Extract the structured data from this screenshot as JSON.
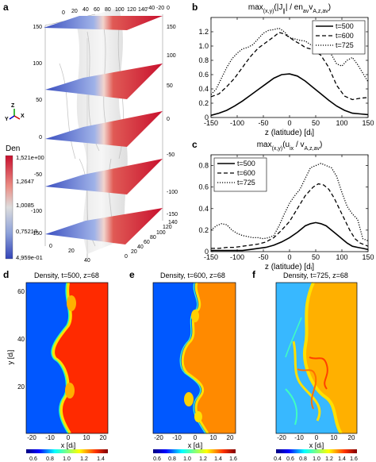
{
  "panels": {
    "a": {
      "label": "a",
      "colorbar": {
        "title": "Den",
        "ticks": [
          "1,521e+00",
          "1,2647",
          "1,0085",
          "0,75218",
          "4,959e-01"
        ],
        "colors": [
          "#d4203a",
          "#e98c82",
          "#dcdcdc",
          "#8a9fd6",
          "#3b4fc0"
        ]
      },
      "axes_ticks_top": [
        "0",
        "20",
        "40",
        "60",
        "80",
        "100",
        "120",
        "140",
        "-40",
        "-20",
        "0"
      ],
      "axes_ticks_left": [
        "150",
        "100",
        "50",
        "0",
        "-50",
        "-100",
        "-150"
      ],
      "axes_ticks_right": [
        "150",
        "100",
        "50",
        "0",
        "-50",
        "-100",
        "-150"
      ],
      "axes_ticks_bottom_right": [
        "140",
        "120",
        "100",
        "80",
        "60",
        "40",
        "20",
        "0"
      ],
      "axes_ticks_bottom_left": [
        "20",
        "40",
        "0"
      ],
      "triad": {
        "z": "Z",
        "y": "Y",
        "x": "X"
      }
    },
    "d": {
      "label": "d",
      "title": "Density, t=500, z=68",
      "xlabel": "x [dᵢ]",
      "ylabel": "y [dᵢ]",
      "xticks": [
        "-20",
        "-10",
        "0",
        "10",
        "20"
      ],
      "yticks": [
        "20",
        "40",
        "60"
      ],
      "cbar_ticks": [
        "0.6",
        "0.8",
        "1.0",
        "1.2",
        "1.4"
      ]
    },
    "e": {
      "label": "e",
      "title": "Density, t=600, z=68",
      "xlabel": "x [dᵢ]",
      "xticks": [
        "-20",
        "-10",
        "0",
        "10",
        "20"
      ],
      "cbar_ticks": [
        "0.6",
        "0.8",
        "1.0",
        "1.2",
        "1.4",
        "1.6"
      ]
    },
    "f": {
      "label": "f",
      "title": "Density, t=725, z=68",
      "xlabel": "x [dᵢ]",
      "xticks": [
        "-20",
        "-10",
        "0",
        "10",
        "20"
      ],
      "cbar_ticks": [
        "0.4",
        "0.6",
        "0.8",
        "1.0",
        "1.2",
        "1.4",
        "1.6"
      ]
    }
  },
  "chart_data": [
    {
      "panel": "b",
      "type": "line",
      "title_main": "max",
      "title_sub": "(x,y)",
      "title_rest": "(|J",
      "title_par": "∥",
      "title_end": "| / en",
      "title_sub2": "av",
      "title_v": "v",
      "title_sub3": "A,z,av",
      "title_close": ")",
      "xlabel": "z (latitude) [dᵢ]",
      "xlim": [
        -150,
        150
      ],
      "ylim": [
        0,
        1.4
      ],
      "xticks": [
        "-150",
        "-100",
        "-50",
        "0",
        "50",
        "100",
        "150"
      ],
      "yticks": [
        "0",
        "0.2",
        "0.4",
        "0.6",
        "0.8",
        "1.0",
        "1.2"
      ],
      "legend_position": "top-right",
      "series": [
        {
          "name": "t=500",
          "style": "solid",
          "x": [
            -150,
            -135,
            -120,
            -105,
            -90,
            -75,
            -60,
            -45,
            -30,
            -15,
            0,
            15,
            30,
            45,
            60,
            75,
            90,
            105,
            120,
            135,
            150
          ],
          "y": [
            0.03,
            0.06,
            0.1,
            0.16,
            0.23,
            0.31,
            0.39,
            0.47,
            0.55,
            0.6,
            0.61,
            0.58,
            0.51,
            0.42,
            0.33,
            0.24,
            0.16,
            0.1,
            0.06,
            0.05,
            0.04
          ]
        },
        {
          "name": "t=600",
          "style": "dashed",
          "x": [
            -150,
            -135,
            -120,
            -105,
            -90,
            -75,
            -60,
            -45,
            -30,
            -20,
            -10,
            0,
            10,
            20,
            30,
            45,
            60,
            75,
            90,
            105,
            120,
            135,
            150
          ],
          "y": [
            0.29,
            0.33,
            0.43,
            0.55,
            0.7,
            0.85,
            0.97,
            1.05,
            1.13,
            1.19,
            1.17,
            1.12,
            1.07,
            1.03,
            0.98,
            0.95,
            0.87,
            0.7,
            0.45,
            0.3,
            0.25,
            0.27,
            0.28
          ]
        },
        {
          "name": "t=725",
          "style": "dotted",
          "x": [
            -150,
            -140,
            -130,
            -120,
            -110,
            -100,
            -90,
            -80,
            -70,
            -60,
            -50,
            -40,
            -30,
            -20,
            -10,
            0,
            10,
            20,
            30,
            40,
            50,
            60,
            70,
            80,
            90,
            100,
            110,
            120,
            130,
            140,
            150
          ],
          "y": [
            0.32,
            0.4,
            0.55,
            0.7,
            0.82,
            0.9,
            0.96,
            0.98,
            1.02,
            1.1,
            1.18,
            1.22,
            1.23,
            1.25,
            1.2,
            1.12,
            1.1,
            1.08,
            1.07,
            1.02,
            1.0,
            0.95,
            0.97,
            0.88,
            0.75,
            0.72,
            0.8,
            0.84,
            0.74,
            0.62,
            0.5
          ]
        }
      ]
    },
    {
      "panel": "c",
      "type": "line",
      "title_main": "max",
      "title_sub": "(x,y)",
      "title_rest": "(u",
      "title_sub_ix": "ix",
      "title_end": " / v",
      "title_sub3": "A,z,av",
      "title_close": ")",
      "xlabel": "z (latitude) [dᵢ]",
      "xlim": [
        -150,
        150
      ],
      "ylim": [
        0,
        0.9
      ],
      "xticks": [
        "-150",
        "-100",
        "-50",
        "0",
        "50",
        "100",
        "150"
      ],
      "yticks": [
        "0",
        "0.2",
        "0.4",
        "0.6",
        "0.8"
      ],
      "legend_position": "top-left",
      "series": [
        {
          "name": "t=500",
          "style": "solid",
          "x": [
            -150,
            -135,
            -120,
            -105,
            -90,
            -75,
            -60,
            -45,
            -30,
            -15,
            0,
            15,
            30,
            40,
            50,
            60,
            70,
            80,
            90,
            100,
            110,
            120,
            130,
            140,
            150
          ],
          "y": [
            0.01,
            0.01,
            0.01,
            0.01,
            0.01,
            0.02,
            0.03,
            0.04,
            0.06,
            0.09,
            0.13,
            0.18,
            0.24,
            0.26,
            0.27,
            0.26,
            0.24,
            0.2,
            0.16,
            0.12,
            0.08,
            0.05,
            0.04,
            0.03,
            0.02
          ]
        },
        {
          "name": "t=600",
          "style": "dashed",
          "x": [
            -150,
            -135,
            -120,
            -105,
            -90,
            -75,
            -60,
            -45,
            -30,
            -15,
            0,
            15,
            30,
            45,
            55,
            65,
            75,
            85,
            95,
            105,
            115,
            125,
            135,
            150
          ],
          "y": [
            0.03,
            0.03,
            0.04,
            0.04,
            0.05,
            0.06,
            0.07,
            0.09,
            0.13,
            0.2,
            0.28,
            0.4,
            0.52,
            0.6,
            0.63,
            0.62,
            0.58,
            0.5,
            0.4,
            0.3,
            0.2,
            0.12,
            0.08,
            0.05
          ]
        },
        {
          "name": "t=725",
          "style": "dotted",
          "x": [
            -150,
            -140,
            -130,
            -120,
            -110,
            -100,
            -90,
            -80,
            -70,
            -60,
            -50,
            -40,
            -30,
            -20,
            -10,
            0,
            10,
            20,
            30,
            40,
            50,
            60,
            70,
            80,
            90,
            100,
            110,
            120,
            130,
            140,
            150
          ],
          "y": [
            0.2,
            0.24,
            0.26,
            0.25,
            0.2,
            0.17,
            0.15,
            0.14,
            0.13,
            0.13,
            0.12,
            0.13,
            0.15,
            0.24,
            0.35,
            0.45,
            0.52,
            0.58,
            0.68,
            0.78,
            0.8,
            0.82,
            0.8,
            0.78,
            0.7,
            0.55,
            0.42,
            0.35,
            0.3,
            0.12,
            0.1
          ]
        }
      ]
    }
  ]
}
